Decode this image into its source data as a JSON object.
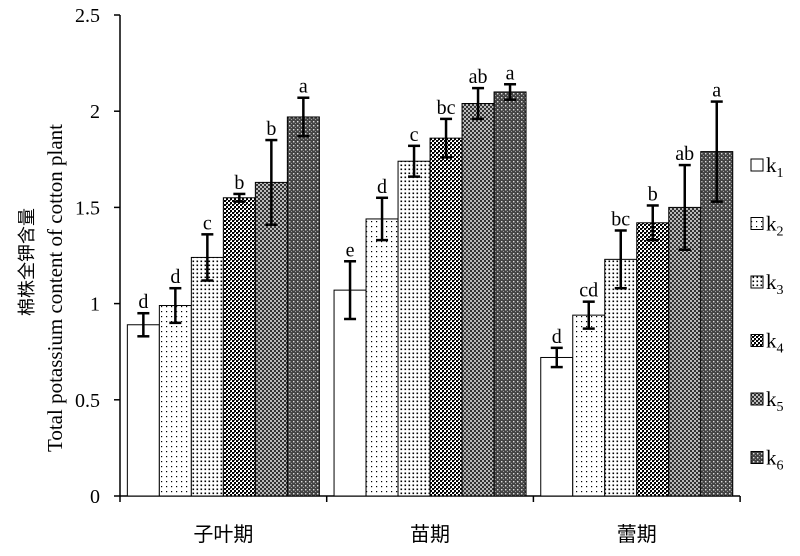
{
  "chart_data": {
    "type": "bar",
    "ylabel_cn": "棉株全钾含量",
    "ylabel_en": "Total potassium content of cotton plant",
    "ylim": [
      0,
      2.5
    ],
    "yticks": [
      "0",
      "0.5",
      "1",
      "1.5",
      "2",
      "2.5"
    ],
    "grid": false,
    "legend_position": "right",
    "categories": [
      "子叶期",
      "苗期",
      "蕾期"
    ],
    "series": [
      {
        "name": "k1",
        "name_base": "k",
        "name_sub": "1",
        "values": [
          0.89,
          1.07,
          0.72
        ],
        "errors": [
          0.06,
          0.15,
          0.05
        ],
        "letters": [
          "d",
          "e",
          "d"
        ]
      },
      {
        "name": "k2",
        "name_base": "k",
        "name_sub": "2",
        "values": [
          0.99,
          1.44,
          0.94
        ],
        "errors": [
          0.09,
          0.11,
          0.07
        ],
        "letters": [
          "d",
          "d",
          "cd"
        ]
      },
      {
        "name": "k3",
        "name_base": "k",
        "name_sub": "3",
        "values": [
          1.24,
          1.74,
          1.23
        ],
        "errors": [
          0.12,
          0.08,
          0.15
        ],
        "letters": [
          "c",
          "c",
          "bc"
        ]
      },
      {
        "name": "k4",
        "name_base": "k",
        "name_sub": "4",
        "values": [
          1.55,
          1.86,
          1.42
        ],
        "errors": [
          0.02,
          0.1,
          0.09
        ],
        "letters": [
          "b",
          "bc",
          "b"
        ]
      },
      {
        "name": "k5",
        "name_base": "k",
        "name_sub": "5",
        "values": [
          1.63,
          2.04,
          1.5
        ],
        "errors": [
          0.22,
          0.08,
          0.22
        ],
        "letters": [
          "b",
          "ab",
          "ab"
        ]
      },
      {
        "name": "k6",
        "name_base": "k",
        "name_sub": "6",
        "values": [
          1.97,
          2.1,
          1.79
        ],
        "errors": [
          0.1,
          0.04,
          0.26
        ],
        "letters": [
          "a",
          "a",
          "a"
        ]
      }
    ]
  }
}
